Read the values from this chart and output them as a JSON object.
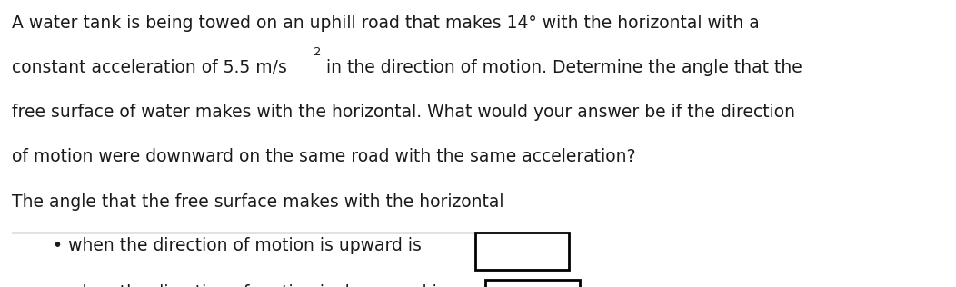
{
  "background_color": "#ffffff",
  "line1": "A water tank is being towed on an uphill road that makes 14° with the horizontal with a",
  "line2a": "constant acceleration of 5.5 m/s",
  "line2_super": "2",
  "line2b": " in the direction of motion. Determine the angle that the",
  "line3": "free surface of water makes with the horizontal. What would your answer be if the direction",
  "line4": "of motion were downward on the same road with the same acceleration?",
  "subtitle": "The angle that the free surface makes with the horizontal",
  "bullet1": "• when the direction of motion is upward is",
  "bullet2": "• when the direction of motion is downward is",
  "font_size": 13.5,
  "font_size_super": 9.5,
  "text_color": "#1a1a1a",
  "box_edge_color": "#000000",
  "box_face_color": "#ffffff",
  "underline_color": "#1a1a1a",
  "underline_xstart": 0.012,
  "underline_xend": 0.538,
  "underline_lw": 0.9
}
